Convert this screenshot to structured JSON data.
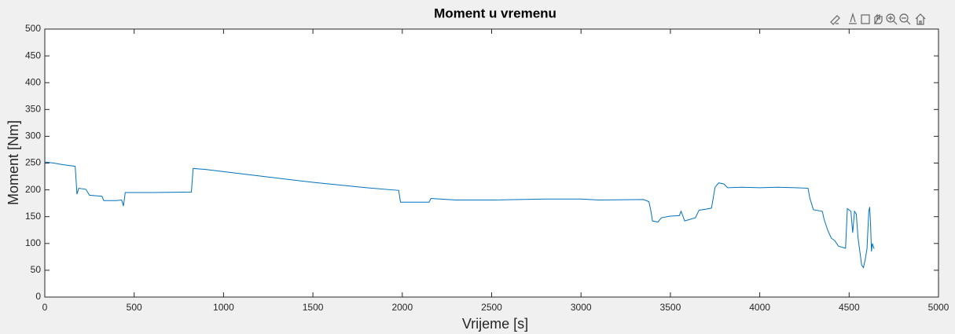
{
  "chart_data": {
    "type": "line",
    "title": "Moment u vremenu",
    "x_label": "Vrijeme [s]",
    "y_label": "Moment [Nm]",
    "xlim": [
      0,
      5000
    ],
    "xticks": [
      0,
      500,
      1000,
      1500,
      2000,
      2500,
      3000,
      3500,
      4000,
      4500,
      5000
    ],
    "ylim": [
      0,
      500
    ],
    "yticks": [
      0,
      50,
      100,
      150,
      200,
      250,
      300,
      350,
      400,
      450,
      500
    ],
    "grid": false,
    "series": [
      {
        "color": "#0072bd",
        "x": [
          0,
          50,
          100,
          170,
          180,
          190,
          230,
          250,
          320,
          330,
          400,
          430,
          440,
          450,
          600,
          820,
          830,
          900,
          1000,
          1200,
          1500,
          1800,
          1980,
          1990,
          2100,
          2150,
          2160,
          2300,
          2500,
          2800,
          3000,
          3100,
          3350,
          3380,
          3390,
          3400,
          3430,
          3450,
          3500,
          3550,
          3560,
          3580,
          3640,
          3660,
          3700,
          3730,
          3750,
          3770,
          3800,
          3820,
          3900,
          4000,
          4100,
          4200,
          4270,
          4280,
          4300,
          4350,
          4360,
          4380,
          4400,
          4420,
          4440,
          4470,
          4480,
          4490,
          4510,
          4520,
          4530,
          4540,
          4550,
          4570,
          4580,
          4590,
          4600,
          4610,
          4615,
          4620,
          4625,
          4630,
          4640
        ],
        "values": [
          252,
          250,
          247,
          244,
          192,
          203,
          201,
          190,
          188,
          180,
          180,
          181,
          170,
          195,
          195,
          196,
          240,
          238,
          234,
          226,
          214,
          204,
          199,
          177,
          177,
          177,
          184,
          181,
          181,
          183,
          183,
          181,
          182,
          178,
          162,
          142,
          140,
          148,
          151,
          152,
          160,
          142,
          148,
          162,
          164,
          166,
          205,
          213,
          211,
          204,
          205,
          204,
          205,
          204,
          203,
          185,
          163,
          160,
          145,
          125,
          110,
          105,
          95,
          92,
          91,
          165,
          160,
          120,
          160,
          155,
          110,
          60,
          55,
          70,
          90,
          160,
          168,
          135,
          85,
          100,
          90
        ]
      }
    ]
  }
}
